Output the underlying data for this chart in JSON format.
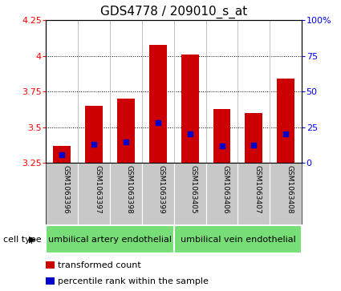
{
  "title": "GDS4778 / 209010_s_at",
  "samples": [
    "GSM1063396",
    "GSM1063397",
    "GSM1063398",
    "GSM1063399",
    "GSM1063405",
    "GSM1063406",
    "GSM1063407",
    "GSM1063408"
  ],
  "bar_tops": [
    3.37,
    3.65,
    3.7,
    4.08,
    4.01,
    3.63,
    3.6,
    3.84
  ],
  "bar_bottom": 3.25,
  "blue_y": [
    3.305,
    3.38,
    3.4,
    3.535,
    3.455,
    3.37,
    3.375,
    3.455
  ],
  "ylim_left": [
    3.25,
    4.25
  ],
  "ylim_right": [
    0,
    100
  ],
  "yticks_left": [
    3.25,
    3.5,
    3.75,
    4.0,
    4.25
  ],
  "ytick_labels_left": [
    "3.25",
    "3.5",
    "3.75",
    "4",
    "4.25"
  ],
  "yticks_right": [
    0,
    25,
    50,
    75,
    100
  ],
  "ytick_labels_right": [
    "0",
    "25",
    "50",
    "75",
    "100%"
  ],
  "bar_color": "#cc0000",
  "blue_color": "#0000cc",
  "bar_width": 0.55,
  "cell_type_labels": [
    "umbilical artery endothelial",
    "umbilical vein endothelial"
  ],
  "cell_type_split": 4,
  "cell_type_header": "cell type",
  "legend_labels": [
    "transformed count",
    "percentile rank within the sample"
  ],
  "bg_white": "#ffffff",
  "label_area_bg": "#c8c8c8",
  "cell_type_bg": "#77dd77",
  "title_fontsize": 11,
  "tick_fontsize": 8,
  "sample_fontsize": 6.5,
  "celltype_fontsize": 8,
  "legend_fontsize": 8
}
